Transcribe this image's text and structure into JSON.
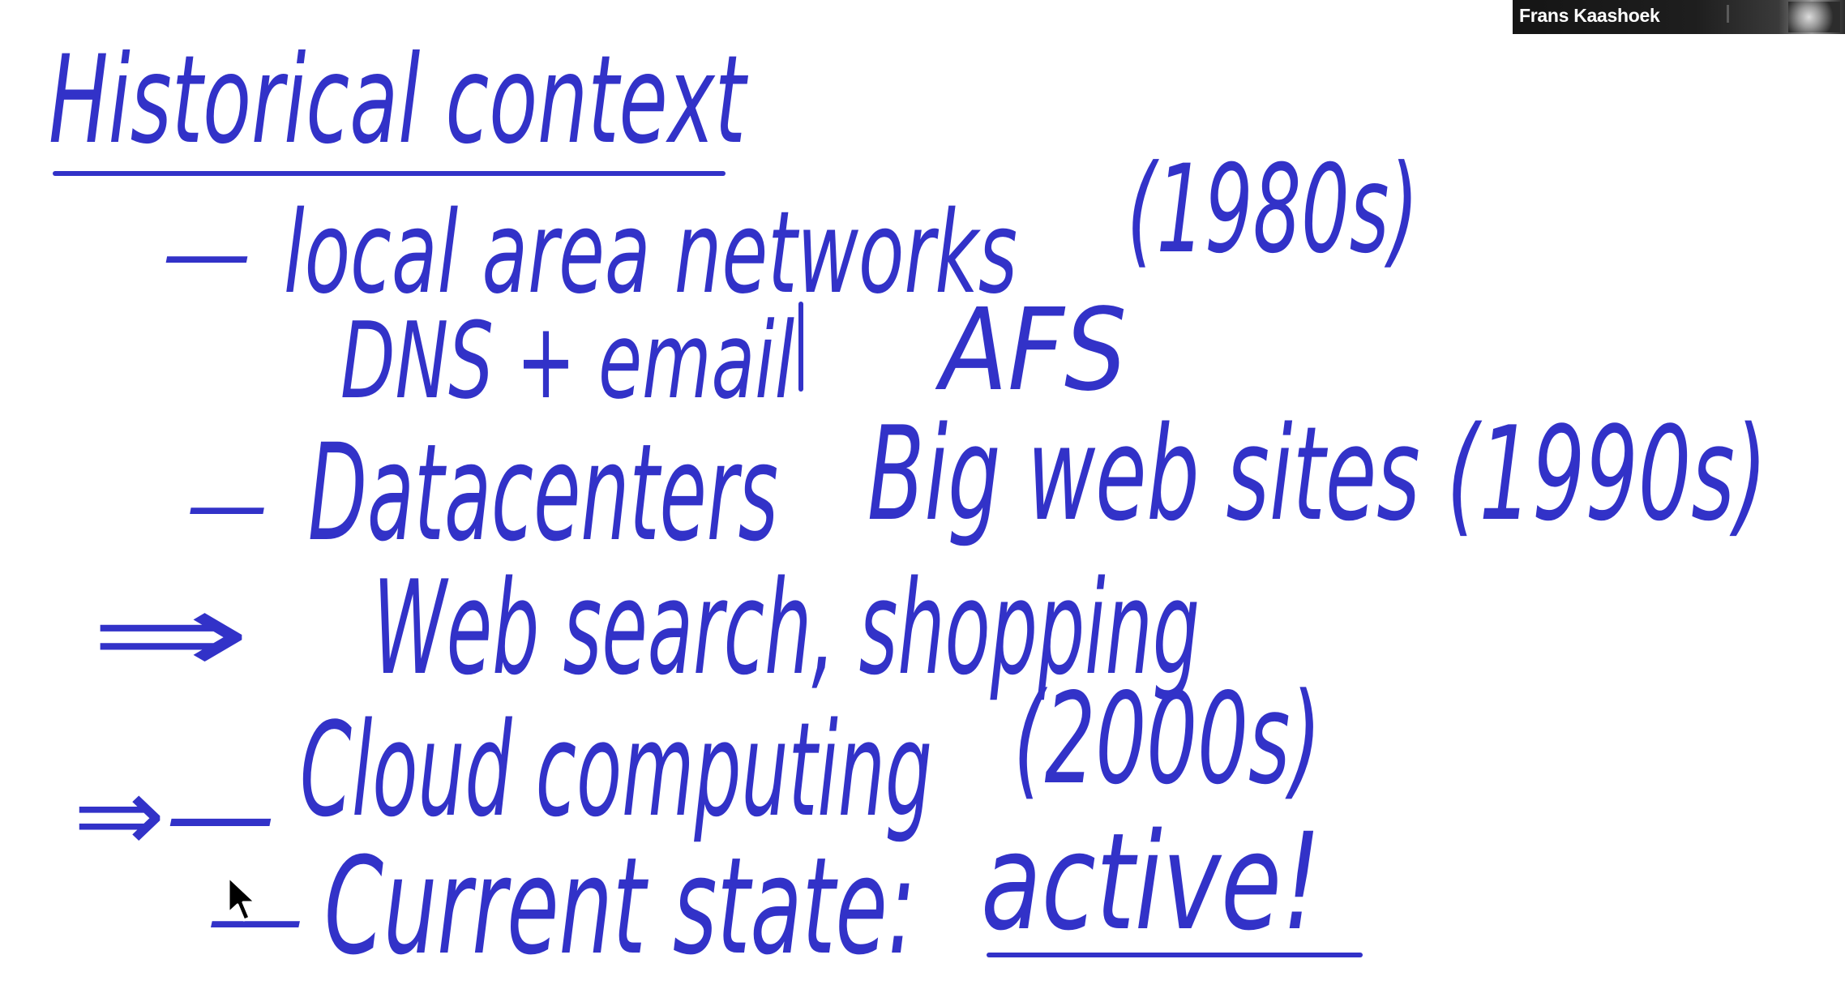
{
  "screen": {
    "participant": {
      "name": "Frans Kaashoek"
    },
    "whiteboard": {
      "ink_color": "#3232c8",
      "title": "Historical context",
      "lines": [
        {
          "bullet": "—",
          "text": "local area networks",
          "note": "(1980s)"
        },
        {
          "text": "DNS + email",
          "note": "AFS"
        },
        {
          "bullet": "—",
          "text": "Datacenters",
          "note": "Big web sites (1990s)"
        },
        {
          "bullet": "⇒",
          "text": "Web search, shopping"
        },
        {
          "bullet": "⇒—",
          "text": "Cloud computing",
          "note": "(2000s)"
        },
        {
          "bullet": "—",
          "text": "Current state:",
          "note": "active!"
        }
      ]
    }
  }
}
